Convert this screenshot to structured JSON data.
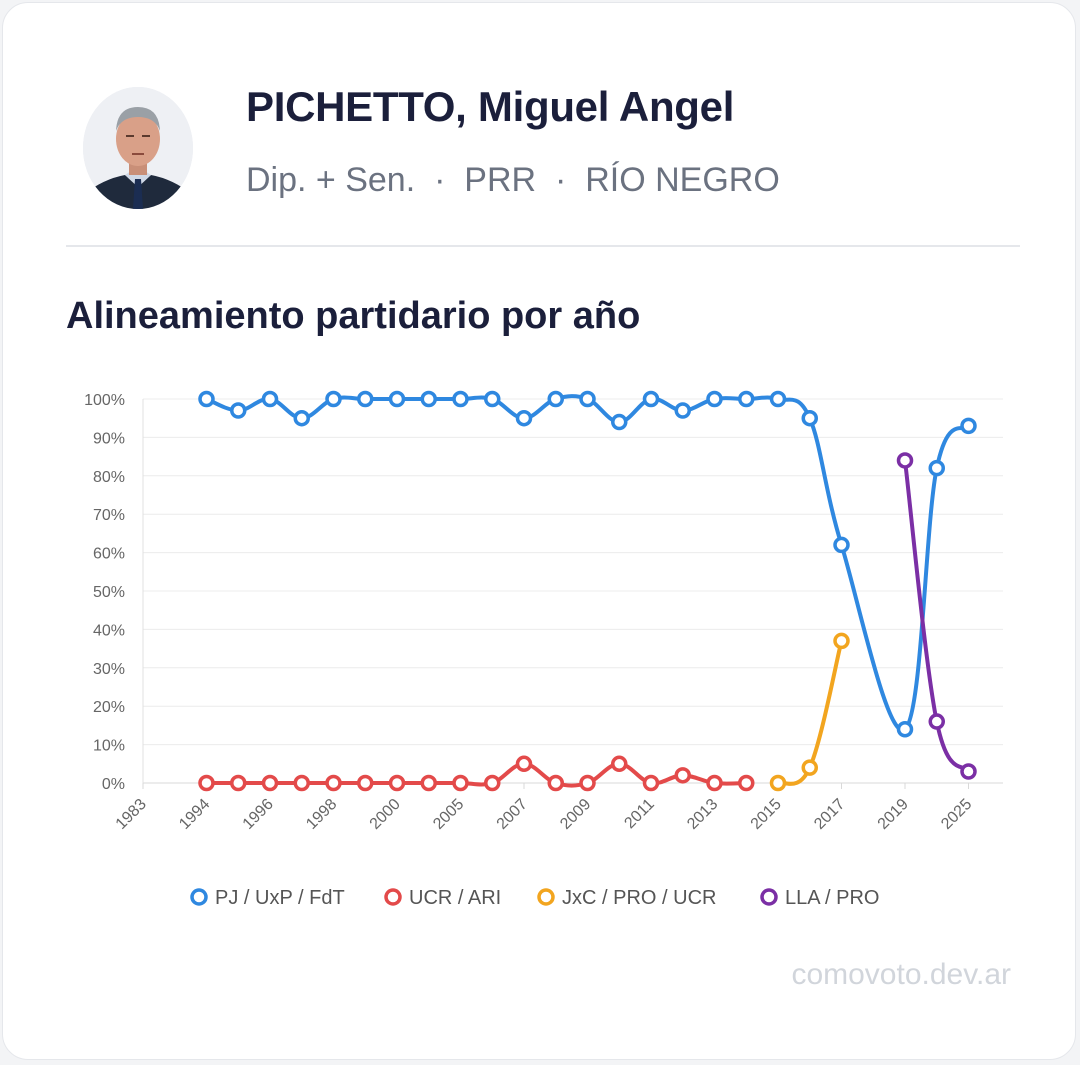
{
  "header": {
    "name": "PICHETTO, Miguel Angel",
    "role": "Dip. + Sen.",
    "party": "PRR",
    "province": "RÍO NEGRO",
    "separator": "·"
  },
  "section_title": "Alineamiento partidario por año",
  "footer": "comovoto.dev.ar",
  "chart_data": {
    "type": "line",
    "categories": [
      "1983",
      "1994",
      "1996",
      "1998",
      "2000",
      "2005",
      "2007",
      "2009",
      "2011",
      "2013",
      "2015",
      "2017",
      "2019",
      "2025"
    ],
    "ylim": [
      0,
      100
    ],
    "yticks": [
      0,
      10,
      20,
      30,
      40,
      50,
      60,
      70,
      80,
      90,
      100
    ],
    "ytick_labels": [
      "0%",
      "10%",
      "20%",
      "30%",
      "40%",
      "50%",
      "60%",
      "70%",
      "80%",
      "90%",
      "100%"
    ],
    "grid": true,
    "legend": "bottom",
    "series": [
      {
        "name": "PJ / UxP / FdT",
        "color": "#2f88e0",
        "x": [
          1,
          1.5,
          2,
          2.5,
          3,
          3.5,
          4,
          4.5,
          5,
          5.5,
          6,
          6.5,
          7,
          7.5,
          8,
          8.5,
          9,
          9.5,
          10,
          10.5,
          11,
          12,
          12.5,
          13
        ],
        "values": [
          100,
          97,
          100,
          95,
          100,
          100,
          100,
          100,
          100,
          100,
          95,
          100,
          100,
          94,
          100,
          97,
          100,
          100,
          100,
          95,
          62,
          14,
          82,
          93
        ]
      },
      {
        "name": "UCR / ARI",
        "color": "#e34a4a",
        "x": [
          1,
          1.5,
          2,
          2.5,
          3,
          3.5,
          4,
          4.5,
          5,
          5.5,
          6,
          6.5,
          7,
          7.5,
          8,
          8.5,
          9,
          9.5
        ],
        "values": [
          0,
          0,
          0,
          0,
          0,
          0,
          0,
          0,
          0,
          0,
          5,
          0,
          0,
          5,
          0,
          2,
          0,
          0
        ]
      },
      {
        "name": "JxC / PRO / UCR",
        "color": "#f2a51f",
        "x": [
          10,
          10.5,
          11
        ],
        "values": [
          0,
          4,
          37
        ]
      },
      {
        "name": "LLA / PRO",
        "color": "#7b2fa5",
        "x": [
          12,
          12.5,
          13
        ],
        "values": [
          84,
          16,
          3
        ]
      }
    ]
  }
}
